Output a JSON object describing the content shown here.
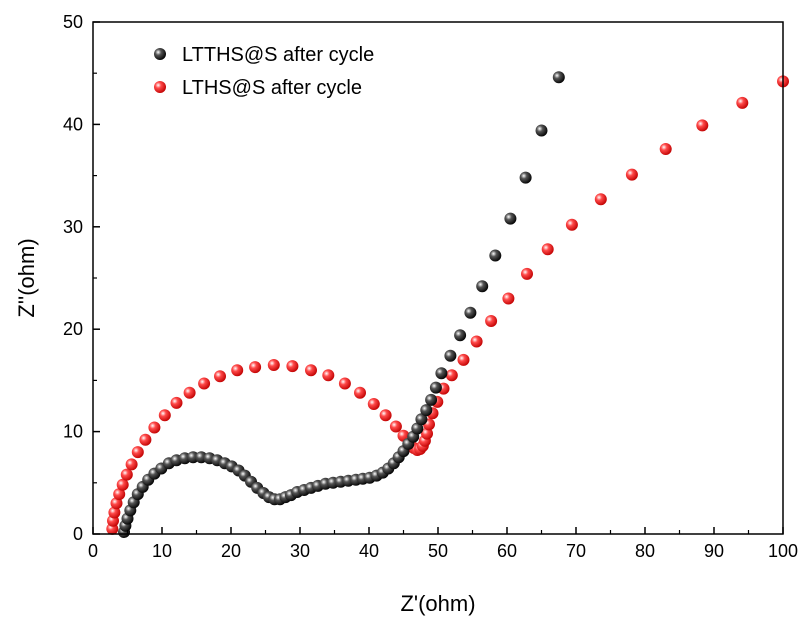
{
  "chart_data": {
    "type": "scatter",
    "xlabel": "Z'(ohm)",
    "ylabel": "Z''(ohm)",
    "xlim": [
      0,
      100
    ],
    "ylim": [
      0,
      50
    ],
    "x_ticks": [
      "0",
      "10",
      "20",
      "30",
      "40",
      "50",
      "60",
      "70",
      "80",
      "90",
      "100"
    ],
    "y_ticks": [
      "0",
      "10",
      "20",
      "30",
      "40",
      "50"
    ],
    "grid": false,
    "legend_position": "top-left",
    "series": [
      {
        "name": "LTTHS@S after cycle",
        "color": "#000000",
        "points": [
          [
            4.5,
            0.2
          ],
          [
            4.7,
            0.8
          ],
          [
            5.0,
            1.5
          ],
          [
            5.4,
            2.3
          ],
          [
            5.9,
            3.1
          ],
          [
            6.5,
            3.9
          ],
          [
            7.2,
            4.6
          ],
          [
            8.0,
            5.3
          ],
          [
            8.9,
            5.9
          ],
          [
            9.9,
            6.4
          ],
          [
            11.0,
            6.9
          ],
          [
            12.1,
            7.2
          ],
          [
            13.3,
            7.4
          ],
          [
            14.5,
            7.5
          ],
          [
            15.7,
            7.5
          ],
          [
            16.9,
            7.4
          ],
          [
            18.0,
            7.2
          ],
          [
            19.1,
            6.9
          ],
          [
            20.1,
            6.6
          ],
          [
            21.1,
            6.2
          ],
          [
            22.0,
            5.7
          ],
          [
            22.9,
            5.1
          ],
          [
            23.8,
            4.5
          ],
          [
            24.7,
            4.0
          ],
          [
            25.5,
            3.6
          ],
          [
            26.3,
            3.4
          ],
          [
            27.1,
            3.4
          ],
          [
            27.9,
            3.6
          ],
          [
            28.7,
            3.8
          ],
          [
            29.6,
            4.1
          ],
          [
            30.6,
            4.3
          ],
          [
            31.6,
            4.5
          ],
          [
            32.6,
            4.7
          ],
          [
            33.7,
            4.9
          ],
          [
            34.8,
            5.0
          ],
          [
            35.9,
            5.1
          ],
          [
            37.0,
            5.2
          ],
          [
            38.1,
            5.3
          ],
          [
            39.1,
            5.4
          ],
          [
            40.1,
            5.5
          ],
          [
            41.1,
            5.7
          ],
          [
            42.0,
            6.0
          ],
          [
            42.8,
            6.4
          ],
          [
            43.6,
            6.9
          ],
          [
            44.3,
            7.5
          ],
          [
            45.0,
            8.1
          ],
          [
            45.7,
            8.8
          ],
          [
            46.4,
            9.5
          ],
          [
            47.0,
            10.3
          ],
          [
            47.6,
            11.2
          ],
          [
            48.3,
            12.1
          ],
          [
            49.0,
            13.1
          ],
          [
            49.7,
            14.3
          ],
          [
            50.5,
            15.7
          ],
          [
            51.8,
            17.4
          ],
          [
            53.2,
            19.4
          ],
          [
            54.7,
            21.6
          ],
          [
            56.4,
            24.2
          ],
          [
            58.3,
            27.2
          ],
          [
            60.5,
            30.8
          ],
          [
            62.7,
            34.8
          ],
          [
            65.0,
            39.4
          ],
          [
            67.5,
            44.6
          ]
        ]
      },
      {
        "name": "LTHS@S after cycle",
        "color": "#e8141b",
        "points": [
          [
            2.8,
            0.5
          ],
          [
            2.9,
            1.3
          ],
          [
            3.1,
            2.1
          ],
          [
            3.4,
            3.0
          ],
          [
            3.8,
            3.9
          ],
          [
            4.3,
            4.8
          ],
          [
            4.9,
            5.8
          ],
          [
            5.6,
            6.8
          ],
          [
            6.5,
            8.0
          ],
          [
            7.6,
            9.2
          ],
          [
            8.9,
            10.4
          ],
          [
            10.4,
            11.6
          ],
          [
            12.1,
            12.8
          ],
          [
            14.0,
            13.8
          ],
          [
            16.1,
            14.7
          ],
          [
            18.4,
            15.4
          ],
          [
            20.9,
            16.0
          ],
          [
            23.5,
            16.3
          ],
          [
            26.2,
            16.5
          ],
          [
            28.9,
            16.4
          ],
          [
            31.6,
            16.0
          ],
          [
            34.1,
            15.5
          ],
          [
            36.5,
            14.7
          ],
          [
            38.7,
            13.8
          ],
          [
            40.7,
            12.7
          ],
          [
            42.4,
            11.6
          ],
          [
            43.9,
            10.5
          ],
          [
            45.0,
            9.6
          ],
          [
            45.9,
            8.9
          ],
          [
            46.5,
            8.4
          ],
          [
            47.0,
            8.2
          ],
          [
            47.4,
            8.3
          ],
          [
            47.8,
            8.6
          ],
          [
            48.1,
            9.1
          ],
          [
            48.4,
            9.8
          ],
          [
            48.7,
            10.7
          ],
          [
            49.2,
            11.8
          ],
          [
            49.9,
            12.9
          ],
          [
            50.8,
            14.2
          ],
          [
            52.0,
            15.5
          ],
          [
            53.7,
            17.0
          ],
          [
            55.6,
            18.8
          ],
          [
            57.7,
            20.8
          ],
          [
            60.2,
            23.0
          ],
          [
            62.9,
            25.4
          ],
          [
            65.9,
            27.8
          ],
          [
            69.4,
            30.2
          ],
          [
            73.6,
            32.7
          ],
          [
            78.1,
            35.1
          ],
          [
            83.0,
            37.6
          ],
          [
            88.3,
            39.9
          ],
          [
            94.1,
            42.1
          ],
          [
            100.0,
            44.2
          ]
        ]
      }
    ]
  }
}
